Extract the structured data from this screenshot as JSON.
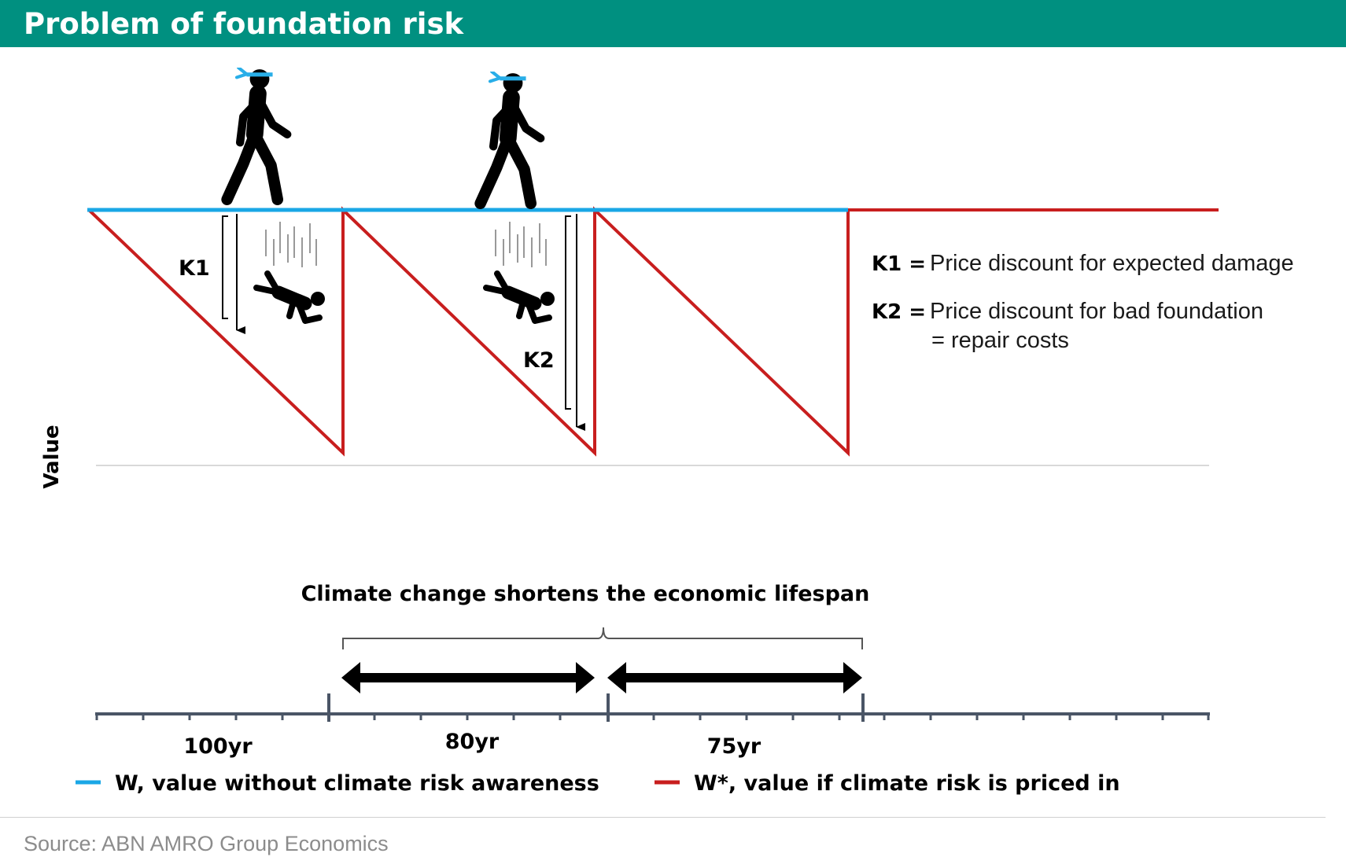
{
  "header": {
    "title": "Problem of foundation risk"
  },
  "diagram": {
    "y_axis_label": "Value",
    "k1_marker": "K1",
    "k2_marker": "K2",
    "definitions": [
      {
        "key": "K1 =",
        "text": "Price discount for expected damage"
      },
      {
        "key": "K2 =",
        "text": "Price discount for bad foundation"
      }
    ],
    "definition_continuation": "= repair costs",
    "bracket_caption": "Climate change shortens the economic lifespan",
    "timeline_labels": [
      "100yr",
      "80yr",
      "75yr"
    ],
    "legend": [
      {
        "label": "W, value without climate risk awareness",
        "color": "#1aa7e6"
      },
      {
        "label": "W*, value if climate risk is priced in",
        "color": "#c81e1e"
      }
    ],
    "icons": [
      "walking-person-icon",
      "falling-person-icon"
    ]
  },
  "colors": {
    "header_bg": "#009080",
    "blue_line": "#1aa7e6",
    "red_line": "#c81e1e",
    "timeline": "#4a5566"
  },
  "source": {
    "text": "Source: ABN AMRO Group Economics"
  }
}
